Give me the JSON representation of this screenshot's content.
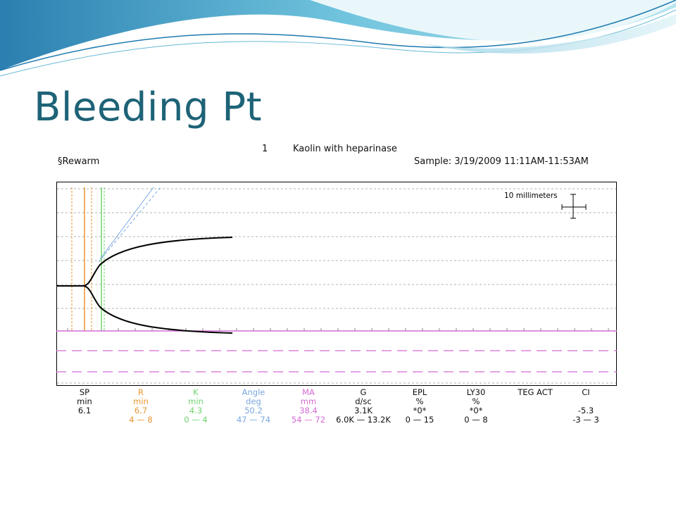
{
  "slide": {
    "title": "Bleeding Pt"
  },
  "report": {
    "sample_number": "1",
    "assay": "Kaolin with heparinase",
    "label": "§Rewarm",
    "sample_time": "Sample: 3/19/2009 11:11AM-11:53AM",
    "scale_label": "10 millimeters"
  },
  "colors": {
    "title": "#1e6377",
    "sp": "#111111",
    "r": "#e8962e",
    "k": "#6fd36f",
    "angle": "#7aa7e0",
    "ma": "#d46ad4",
    "trace": "#000000"
  },
  "parameters": [
    {
      "name": "SP",
      "unit": "min",
      "value": "6.1",
      "range": "",
      "color": "#111111"
    },
    {
      "name": "R",
      "unit": "min",
      "value": "6.7",
      "range": "4 — 8",
      "color": "#e8962e"
    },
    {
      "name": "K",
      "unit": "min",
      "value": "4.3",
      "range": "0 — 4",
      "color": "#6fd36f"
    },
    {
      "name": "Angle",
      "unit": "deg",
      "value": "50.2",
      "range": "47 — 74",
      "color": "#7aa7e0"
    },
    {
      "name": "MA",
      "unit": "mm",
      "value": "38.4",
      "range": "54 — 72",
      "color": "#d46ad4"
    },
    {
      "name": "G",
      "unit": "d/sc",
      "value": "3.1K",
      "range": "6.0K — 13.2K",
      "color": "#111111"
    },
    {
      "name": "EPL",
      "unit": "%",
      "value": "*0*",
      "range": "0 — 15",
      "color": "#111111"
    },
    {
      "name": "LY30",
      "unit": "%",
      "value": "*0*",
      "range": "0 — 8",
      "color": "#111111"
    },
    {
      "name": "TEG ACT",
      "unit": "",
      "value": "",
      "range": "",
      "color": "#111111"
    },
    {
      "name": "CI",
      "unit": "",
      "value": "-5.3",
      "range": "-3 — 3",
      "color": "#111111"
    }
  ]
}
